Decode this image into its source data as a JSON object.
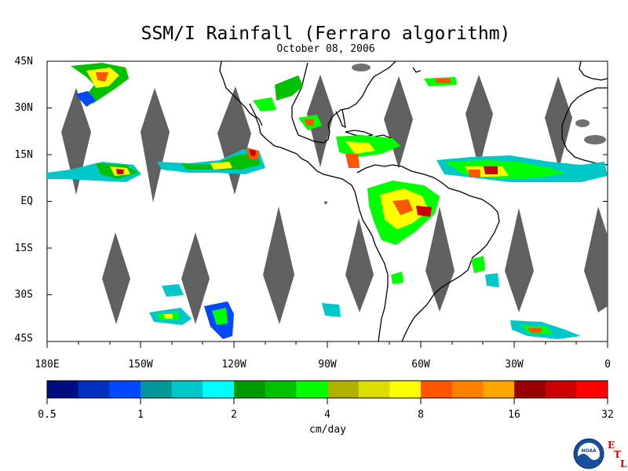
{
  "title": "SSM/I Rainfall (Ferraro algorithm)",
  "date": "October 08, 2006",
  "lat_labels": [
    "45N",
    "30N",
    "15N",
    "EQ",
    "15S",
    "30S",
    "45S"
  ],
  "lon_labels": [
    "180E",
    "150W",
    "120W",
    "90W",
    "60W",
    "30W",
    "0"
  ],
  "colorbar": {
    "colors": [
      "#000c80",
      "#0030c0",
      "#0048ff",
      "#00999a",
      "#00c8c8",
      "#00ffff",
      "#009900",
      "#00c000",
      "#00ff00",
      "#b0b000",
      "#dcdc00",
      "#ffff00",
      "#ff5500",
      "#ff8000",
      "#ffa500",
      "#990000",
      "#cc0000",
      "#ff0000"
    ],
    "tick_labels": [
      "0.5",
      "1",
      "2",
      "4",
      "8",
      "16",
      "32"
    ],
    "units": "cm/day"
  },
  "logo_text": "NOAA",
  "lab_letters": [
    "E",
    "T",
    "L"
  ],
  "colors": {
    "gap_gray": "#606060",
    "coast": "#000000",
    "land_gray": "#707070"
  }
}
